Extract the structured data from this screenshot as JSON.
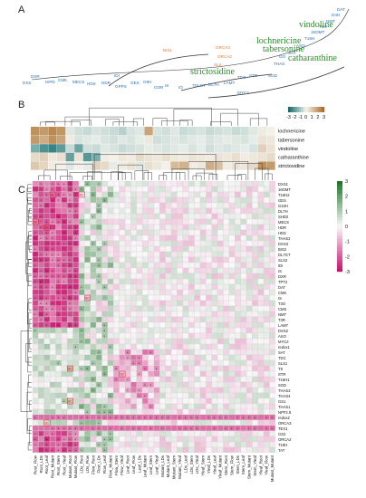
{
  "panels": [
    "A",
    "B",
    "C"
  ],
  "compounds": [
    {
      "name": "vindoline"
    },
    {
      "name": "lochnericine"
    },
    {
      "name": "tabersonine"
    },
    {
      "name": "catharanthine"
    },
    {
      "name": "strictosidine"
    }
  ],
  "pathway_genes": [
    {
      "label": "DXS",
      "color": "#2a6fb0"
    },
    {
      "label": "DXR",
      "color": "#2a6fb0"
    },
    {
      "label": "ISPD",
      "color": "#2a6fb0"
    },
    {
      "label": "CMK",
      "color": "#2a6fb0"
    },
    {
      "label": "MECS",
      "color": "#2a6fb0"
    },
    {
      "label": "HDS",
      "color": "#2a6fb0"
    },
    {
      "label": "HDR",
      "color": "#2a6fb0"
    },
    {
      "label": "IDI",
      "color": "#2a6fb0"
    },
    {
      "label": "GPPS",
      "color": "#2a6fb0"
    },
    {
      "label": "GES",
      "color": "#2a6fb0"
    },
    {
      "label": "G8H",
      "color": "#2a6fb0"
    },
    {
      "label": "GOR",
      "color": "#2a6fb0"
    },
    {
      "label": "IS",
      "color": "#2a6fb0"
    },
    {
      "label": "IO",
      "color": "#2a6fb0"
    },
    {
      "label": "7DLGT",
      "color": "#2a6fb0"
    },
    {
      "label": "DL7H",
      "color": "#2a6fb0"
    },
    {
      "label": "LAMT",
      "color": "#2a6fb0"
    },
    {
      "label": "SLS",
      "color": "#e07b39"
    },
    {
      "label": "TDC",
      "color": "#2a6fb0"
    },
    {
      "label": "STR",
      "color": "#2a6fb0"
    },
    {
      "label": "SGD",
      "color": "#2a6fb0"
    },
    {
      "label": "THAS",
      "color": "#2a6fb0"
    },
    {
      "label": "GO",
      "color": "#2a6fb0"
    },
    {
      "label": "SAT",
      "color": "#2a6fb0"
    },
    {
      "label": "ASO",
      "color": "#2a6fb0"
    },
    {
      "label": "T16H",
      "color": "#2a6fb0"
    },
    {
      "label": "16OMT",
      "color": "#2a6fb0"
    },
    {
      "label": "T3O",
      "color": "#2a6fb0"
    },
    {
      "label": "NMT",
      "color": "#2a6fb0"
    },
    {
      "label": "D4H",
      "color": "#2a6fb0"
    },
    {
      "label": "DAT",
      "color": "#2a6fb0"
    },
    {
      "label": "BIS1",
      "color": "#e07b39"
    },
    {
      "label": "ORCA3",
      "color": "#e07b39"
    },
    {
      "label": "ORCA2",
      "color": "#e07b39"
    },
    {
      "label": "MYC2",
      "color": "#2a6fb0"
    }
  ],
  "metabolite_heatmap": {
    "rows": [
      "lochnericine",
      "tabersonine",
      "vindoline",
      "catharanthine",
      "strictosidine"
    ],
    "values": [
      [
        2.2,
        2.0,
        2.4,
        2.1,
        -0.3,
        -0.5,
        -0.6,
        -0.4,
        -0.5,
        -0.6,
        -0.8,
        -0.4,
        -0.3,
        1.8,
        -0.4,
        -0.5,
        -0.3,
        -0.6,
        -0.5,
        -0.4,
        -0.6,
        -0.5,
        -0.4,
        -0.6,
        -0.5,
        -0.3,
        0.2,
        0.1
      ],
      [
        2.0,
        1.6,
        2.2,
        1.8,
        0.2,
        -0.4,
        -0.3,
        -0.2,
        -0.4,
        -0.5,
        -0.3,
        -0.4,
        -0.2,
        0.3,
        -0.5,
        -0.4,
        -0.3,
        -0.4,
        -0.3,
        -0.2,
        -0.4,
        -0.3,
        -0.2,
        -0.3,
        -0.4,
        -0.2,
        0.4,
        0.3
      ],
      [
        -1.6,
        -2.2,
        -2.5,
        -2.0,
        -0.6,
        -1.8,
        -0.5,
        -0.6,
        -0.3,
        -0.4,
        -0.6,
        -0.5,
        -0.4,
        -0.2,
        -0.3,
        -0.4,
        -0.3,
        -0.2,
        -0.4,
        -0.2,
        -0.5,
        -0.3,
        -0.4,
        -0.3,
        -0.2,
        -0.4,
        0.8,
        0.4
      ],
      [
        0.6,
        0.8,
        0.3,
        0.5,
        -1.9,
        0.4,
        -2.1,
        -1.6,
        0.2,
        0.1,
        0.3,
        0.2,
        0.6,
        0.4,
        0.3,
        0.5,
        0.3,
        0.2,
        0.4,
        0.3,
        0.2,
        0.4,
        0.3,
        0.5,
        0.2,
        0.3,
        0.4,
        0.6
      ],
      [
        1.0,
        0.7,
        0.2,
        0.1,
        -0.3,
        0.1,
        -0.2,
        0.8,
        0.6,
        -0.2,
        0.2,
        0.4,
        -0.3,
        0.5,
        0.3,
        0.1,
        1.3,
        1.5,
        0.2,
        0.3,
        1.6,
        1.2,
        0.2,
        0.4,
        0.3,
        0.6,
        2.2,
        2.0
      ]
    ]
  },
  "legend_b": {
    "ticks": [
      "-3",
      "-2",
      "-1",
      "0",
      "1",
      "2",
      "3"
    ]
  },
  "legend_c": {
    "ticks": [
      "3",
      "2",
      "1",
      "0",
      "-1",
      "-2",
      "-3"
    ]
  },
  "gene_rows": [
    "DXS1",
    "16OMT",
    "T16H2",
    "GES",
    "G10H",
    "DL7H",
    "SHD2",
    "MECS",
    "HDR",
    "HDS",
    "THAS2",
    "DXS3",
    "BIS2",
    "DL7GT",
    "SLS2",
    "IDI",
    "IS",
    "DXR",
    "TPT2",
    "DAT",
    "CMK",
    "IS",
    "T3O",
    "CMS",
    "NMT",
    "T3R",
    "LAMT",
    "DXS2",
    "ASO",
    "MYC2",
    "redox1",
    "SAT",
    "TDC",
    "SLS1",
    "TS",
    "STR",
    "T16H1",
    "SGD",
    "THAS3",
    "THAS4",
    "GS1",
    "THAS1",
    "NPF2.9",
    "redox2",
    "ORCA3",
    "TEX1",
    "GS2",
    "ORCA2",
    "T19H",
    "TAT"
  ],
  "red_rows": [
    2,
    5,
    6,
    12,
    14,
    24,
    33,
    36,
    42,
    44,
    47
  ],
  "col_labels": [
    "Root_Flow",
    "Root_LDs",
    "Root_Leaf",
    "Root_Mutant",
    "Root_Stem",
    "Root_Yleaf",
    "Mutant_Root",
    "Mutant_Flow",
    "LDs_Root",
    "LDs_Flow",
    "Flow_Root",
    "Flow_LDs",
    "Flow_Leaf",
    "Flow_Mutant",
    "Flow_Stem",
    "Flow_Yleaf",
    "Leaf_Root",
    "Leaf_Flow",
    "Leaf_LDs",
    "Leaf_Mutant",
    "Leaf_Stem",
    "Leaf_Yleaf",
    "Mutant_LDs",
    "Mutant_Leaf",
    "Mutant_Stem",
    "Mutant_Yleaf",
    "LDs_Leaf",
    "LDs_Stem",
    "LDs_Yleaf",
    "Yleaf_Stem",
    "Yleaf_LDs",
    "Yleaf_Leaf",
    "Yleaf_Mutant",
    "Stem_Root",
    "Stem_Flow",
    "Stem_LDs",
    "Stem_Leaf",
    "Stem_Mutant",
    "Stem_Yleaf",
    "Yleaf_Root",
    "Yleaf_Flow",
    "Mutant_Mutant"
  ],
  "sc_label": "SC"
}
